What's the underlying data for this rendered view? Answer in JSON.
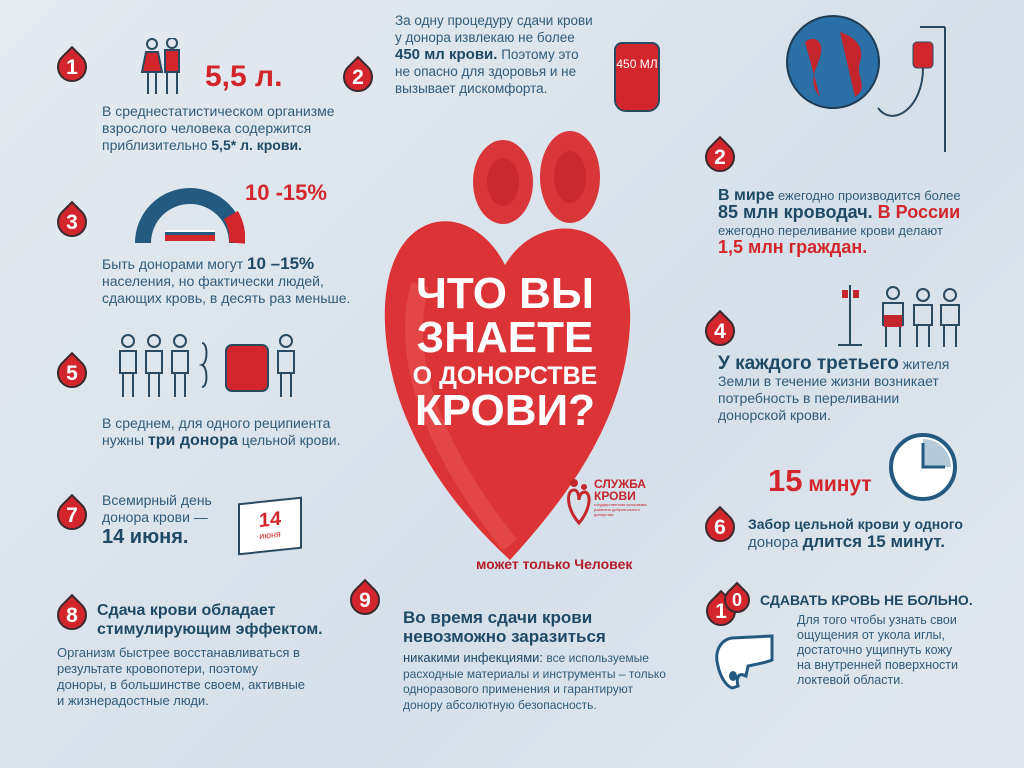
{
  "colors": {
    "accent_red": "#d3262c",
    "text_blue": "#1e4a66",
    "background": "#dde5ed"
  },
  "title": [
    "ЧТО ВЫ",
    "ЗНАЕТЕ",
    "О ДОНОРСТВЕ",
    "КРОВИ?"
  ],
  "facts": [
    {
      "num": "1",
      "big": "5,5 л.",
      "lines": [
        "В среднестатистическом организме",
        "взрослого человека содержится"
      ],
      "pre": "приблизительно ",
      "bold": "5,5* л. крови."
    },
    {
      "num": "2",
      "l1": "За одну процедуру сдачи крови",
      "l2": "у донора извлекаю не более",
      "bold": "450 мл крови.",
      "l3": " Поэтому это",
      "l4": "не опасно для здоровья и не",
      "l5": "вызывает дискомфорта.",
      "bag": "450 МЛ"
    },
    {
      "num": "2",
      "b1": "В мире",
      "t1": " ежегодно производится более",
      "b2": "85 млн кроводач.",
      "r1": " В России",
      "t2": "ежегодно переливание крови делают",
      "r2": "1,5 млн граждан."
    },
    {
      "num": "3",
      "big": "10 -15%",
      "pre": "Быть донорами могут ",
      "bold": "10 –15%",
      "l2": "населения, но фактически людей,",
      "l3": "сдающих кровь, в десять раз меньше."
    },
    {
      "num": "4",
      "bold": "У каждого третьего",
      "t1": " жителя",
      "l2": "Земли в течение жизни возникает",
      "l3": "потребность в переливании",
      "l4": "донорской крови."
    },
    {
      "num": "5",
      "l1": "В среднем, для одного реципиента",
      "pre": "нужны ",
      "bold": "три донора",
      "post": " цельной крови."
    },
    {
      "num": "6",
      "big_num": "15",
      "big_unit": " минут",
      "b1": "Забор цельной крови у одного",
      "pre": "донора ",
      "bold": "длится 15 минут."
    },
    {
      "num": "7",
      "l1": "Всемирный день",
      "l2": "донора крови —",
      "bold": "14 июня.",
      "cal_num": "14",
      "cal_month": "июня"
    },
    {
      "num": "8",
      "h1": "Сдача крови обладает",
      "h2": "стимулирующим эффектом.",
      "lines": [
        "Организм быстрее восстанавливаться в",
        "результате кровопотери, поэтому",
        "доноры, в большинстве своем, активные",
        "и жизнерадостные люди."
      ]
    },
    {
      "num": "9",
      "h1": "Во время сдачи крови",
      "h2": "невозможно заразиться",
      "bold": "никакими инфекциями:",
      "t1": " все используемые",
      "lines": [
        "расходные материалы и инструменты – только",
        "одноразового применения и гарантируют",
        "донору абсолютную безопасность."
      ]
    },
    {
      "num_a": "1",
      "num_b": "0",
      "h": "СДАВАТЬ КРОВЬ НЕ БОЛЬНО.",
      "lines": [
        "Для того чтобы узнать свои",
        "ощущения от укола иглы,",
        "достаточно ущипнуть кожу",
        "на внутренней поверхности",
        "локтевой области."
      ]
    }
  ],
  "logo": {
    "l1": "СЛУЖБА",
    "l2": "КРОВИ",
    "small": "государственная программа развития добровольного донорства"
  },
  "slogan": "может только Человек"
}
